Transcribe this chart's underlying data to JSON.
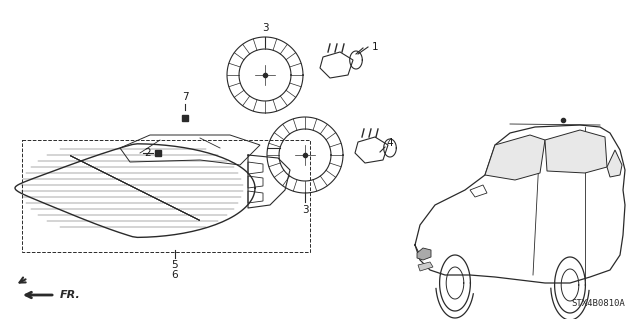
{
  "bg_color": "#ffffff",
  "line_color": "#2a2a2a",
  "label_color": "#1a1a1a",
  "bottom_text": "STX4B0810A",
  "fr_text": "FR.",
  "figsize": [
    6.4,
    3.19
  ],
  "dpi": 100
}
